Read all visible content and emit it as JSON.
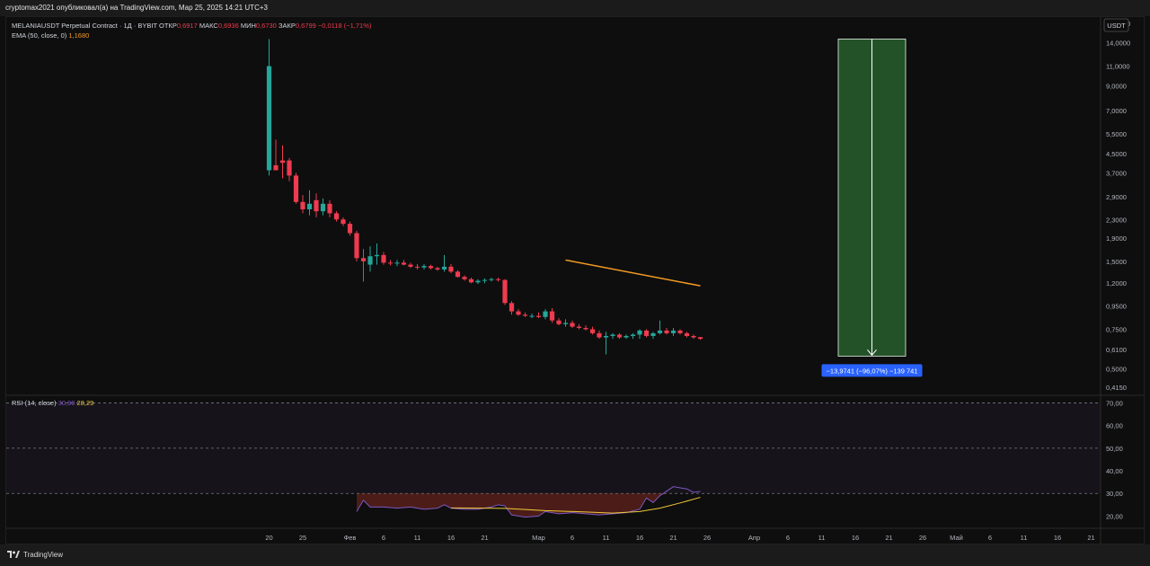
{
  "topbar": {
    "text": "cryptomax2021 опубликовал(а) на TradingView.com, Мар 25, 2025 14:21 UTC+3"
  },
  "footer": {
    "logo_text": "TradingView"
  },
  "legend": {
    "symbol": "MELANIAUSDT Perpetual Contract · 1Д · BYBIT",
    "open_label": "ОТКР",
    "open_value": "0,6917",
    "high_label": "МАКС",
    "high_value": "0,6936",
    "low_label": "МИН",
    "low_value": "0,6730",
    "close_label": "ЗАКР",
    "close_value": "0,6799",
    "change": "−0,0118 (−1,71%)",
    "ema_label": "EMA (50, close, 0)",
    "ema_value": "1,1680",
    "rsi_label": "RSI (14, close)",
    "rsi_value": "30,90",
    "rsi_ma_value": "28,29"
  },
  "colors": {
    "up": "#26a69a",
    "down": "#ef3b4f",
    "ema": "#f59a23",
    "rsi": "#7e57c2",
    "rsi_ma": "#f0c93a",
    "measure_fill": "#245228",
    "badge": "#2962ff"
  },
  "measure": {
    "label": "−13,9741 (−96,07%) −139 741",
    "from_price": 14.5,
    "to_price": 0.57
  },
  "chart_data": [
    {
      "type": "candlestick",
      "title": "MELANIAUSDT Perpetual Contract · 1Д · BYBIT",
      "currency": "USDT",
      "y_scale": "log",
      "ylim": [
        0.4,
        17.5
      ],
      "y_ticks": [
        0.415,
        0.5,
        0.61,
        0.75,
        0.95,
        1.2,
        1.5,
        1.9,
        2.3,
        2.9,
        3.7,
        4.5,
        5.5,
        7.0,
        9.0,
        11.0,
        14.0,
        17.0
      ],
      "y_tick_labels": [
        "0,4150",
        "0,5000",
        "0,6100",
        "0,7500",
        "0,9500",
        "1,2000",
        "1,5000",
        "1,9000",
        "2,3000",
        "2,9000",
        "3,7000",
        "4,5000",
        "5,5000",
        "7,0000",
        "9,0000",
        "11,0000",
        "14,0000",
        "17,0000"
      ],
      "x_tick_labels": [
        "20",
        "25",
        "Фев",
        "6",
        "11",
        "16",
        "21",
        "Мар",
        "6",
        "11",
        "16",
        "21",
        "26",
        "Апр",
        "6",
        "11",
        "16",
        "21",
        "26",
        "Май",
        "6",
        "11",
        "16",
        "21"
      ],
      "x_tick_days": [
        0,
        5,
        12,
        17,
        22,
        27,
        32,
        40,
        45,
        50,
        55,
        60,
        65,
        72,
        77,
        82,
        87,
        92,
        97,
        102,
        107,
        112,
        117,
        122
      ],
      "start_date": "2025-01-20",
      "candles": [
        {
          "d": "2025-01-20",
          "o": 3.8,
          "h": 14.5,
          "l": 3.6,
          "c": 11.0
        },
        {
          "d": "2025-01-21",
          "o": 4.0,
          "h": 5.2,
          "l": 3.8,
          "c": 3.8
        },
        {
          "d": "2025-01-22",
          "o": 4.2,
          "h": 4.9,
          "l": 3.5,
          "c": 4.1
        },
        {
          "d": "2025-01-23",
          "o": 4.2,
          "h": 4.3,
          "l": 3.4,
          "c": 3.6
        },
        {
          "d": "2025-01-24",
          "o": 3.6,
          "h": 3.7,
          "l": 2.7,
          "c": 2.75
        },
        {
          "d": "2025-01-25",
          "o": 2.75,
          "h": 2.95,
          "l": 2.45,
          "c": 2.55
        },
        {
          "d": "2025-01-26",
          "o": 2.55,
          "h": 3.1,
          "l": 2.4,
          "c": 2.7
        },
        {
          "d": "2025-01-27",
          "o": 2.8,
          "h": 3.0,
          "l": 2.35,
          "c": 2.5
        },
        {
          "d": "2025-01-28",
          "o": 2.5,
          "h": 2.85,
          "l": 2.4,
          "c": 2.7
        },
        {
          "d": "2025-01-29",
          "o": 2.7,
          "h": 2.8,
          "l": 2.35,
          "c": 2.45
        },
        {
          "d": "2025-01-30",
          "o": 2.45,
          "h": 2.5,
          "l": 2.25,
          "c": 2.3
        },
        {
          "d": "2025-01-31",
          "o": 2.3,
          "h": 2.35,
          "l": 2.15,
          "c": 2.2
        },
        {
          "d": "2025-02-01",
          "o": 2.2,
          "h": 2.25,
          "l": 1.95,
          "c": 2.0
        },
        {
          "d": "2025-02-02",
          "o": 2.0,
          "h": 2.05,
          "l": 1.5,
          "c": 1.55
        },
        {
          "d": "2025-02-03",
          "o": 1.55,
          "h": 1.7,
          "l": 1.22,
          "c": 1.5
        },
        {
          "d": "2025-02-04",
          "o": 1.45,
          "h": 1.75,
          "l": 1.35,
          "c": 1.58
        },
        {
          "d": "2025-02-05",
          "o": 1.58,
          "h": 1.8,
          "l": 1.45,
          "c": 1.6
        },
        {
          "d": "2025-02-06",
          "o": 1.6,
          "h": 1.65,
          "l": 1.45,
          "c": 1.48
        },
        {
          "d": "2025-02-07",
          "o": 1.48,
          "h": 1.52,
          "l": 1.44,
          "c": 1.47
        },
        {
          "d": "2025-02-08",
          "o": 1.47,
          "h": 1.52,
          "l": 1.43,
          "c": 1.48
        },
        {
          "d": "2025-02-09",
          "o": 1.48,
          "h": 1.52,
          "l": 1.44,
          "c": 1.45
        },
        {
          "d": "2025-02-10",
          "o": 1.45,
          "h": 1.48,
          "l": 1.4,
          "c": 1.42
        },
        {
          "d": "2025-02-11",
          "o": 1.42,
          "h": 1.46,
          "l": 1.38,
          "c": 1.41
        },
        {
          "d": "2025-02-12",
          "o": 1.41,
          "h": 1.46,
          "l": 1.38,
          "c": 1.43
        },
        {
          "d": "2025-02-13",
          "o": 1.43,
          "h": 1.45,
          "l": 1.38,
          "c": 1.4
        },
        {
          "d": "2025-02-14",
          "o": 1.4,
          "h": 1.42,
          "l": 1.36,
          "c": 1.38
        },
        {
          "d": "2025-02-15",
          "o": 1.38,
          "h": 1.6,
          "l": 1.35,
          "c": 1.42
        },
        {
          "d": "2025-02-16",
          "o": 1.42,
          "h": 1.46,
          "l": 1.33,
          "c": 1.35
        },
        {
          "d": "2025-02-17",
          "o": 1.35,
          "h": 1.37,
          "l": 1.27,
          "c": 1.28
        },
        {
          "d": "2025-02-18",
          "o": 1.28,
          "h": 1.3,
          "l": 1.23,
          "c": 1.25
        },
        {
          "d": "2025-02-19",
          "o": 1.25,
          "h": 1.27,
          "l": 1.2,
          "c": 1.21
        },
        {
          "d": "2025-02-20",
          "o": 1.21,
          "h": 1.25,
          "l": 1.19,
          "c": 1.23
        },
        {
          "d": "2025-02-21",
          "o": 1.23,
          "h": 1.26,
          "l": 1.2,
          "c": 1.24
        },
        {
          "d": "2025-02-22",
          "o": 1.24,
          "h": 1.27,
          "l": 1.22,
          "c": 1.25
        },
        {
          "d": "2025-02-23",
          "o": 1.25,
          "h": 1.27,
          "l": 1.22,
          "c": 1.24
        },
        {
          "d": "2025-02-24",
          "o": 1.24,
          "h": 1.25,
          "l": 0.96,
          "c": 0.98
        },
        {
          "d": "2025-02-25",
          "o": 0.98,
          "h": 1.0,
          "l": 0.87,
          "c": 0.9
        },
        {
          "d": "2025-02-26",
          "o": 0.9,
          "h": 0.92,
          "l": 0.86,
          "c": 0.87
        },
        {
          "d": "2025-02-27",
          "o": 0.87,
          "h": 0.89,
          "l": 0.85,
          "c": 0.86
        },
        {
          "d": "2025-02-28",
          "o": 0.86,
          "h": 0.88,
          "l": 0.84,
          "c": 0.86
        },
        {
          "d": "2025-03-01",
          "o": 0.86,
          "h": 0.89,
          "l": 0.84,
          "c": 0.85
        },
        {
          "d": "2025-03-02",
          "o": 0.85,
          "h": 0.92,
          "l": 0.83,
          "c": 0.9
        },
        {
          "d": "2025-03-03",
          "o": 0.9,
          "h": 0.93,
          "l": 0.8,
          "c": 0.82
        },
        {
          "d": "2025-03-04",
          "o": 0.82,
          "h": 0.84,
          "l": 0.78,
          "c": 0.79
        },
        {
          "d": "2025-03-05",
          "o": 0.79,
          "h": 0.83,
          "l": 0.77,
          "c": 0.8
        },
        {
          "d": "2025-03-06",
          "o": 0.8,
          "h": 0.82,
          "l": 0.76,
          "c": 0.77
        },
        {
          "d": "2025-03-07",
          "o": 0.77,
          "h": 0.79,
          "l": 0.75,
          "c": 0.76
        },
        {
          "d": "2025-03-08",
          "o": 0.76,
          "h": 0.78,
          "l": 0.74,
          "c": 0.75
        },
        {
          "d": "2025-03-09",
          "o": 0.75,
          "h": 0.77,
          "l": 0.71,
          "c": 0.72
        },
        {
          "d": "2025-03-10",
          "o": 0.72,
          "h": 0.74,
          "l": 0.68,
          "c": 0.69
        },
        {
          "d": "2025-03-11",
          "o": 0.69,
          "h": 0.73,
          "l": 0.58,
          "c": 0.7
        },
        {
          "d": "2025-03-12",
          "o": 0.7,
          "h": 0.72,
          "l": 0.68,
          "c": 0.71
        },
        {
          "d": "2025-03-13",
          "o": 0.71,
          "h": 0.72,
          "l": 0.68,
          "c": 0.69
        },
        {
          "d": "2025-03-14",
          "o": 0.69,
          "h": 0.71,
          "l": 0.68,
          "c": 0.7
        },
        {
          "d": "2025-03-15",
          "o": 0.7,
          "h": 0.72,
          "l": 0.68,
          "c": 0.71
        },
        {
          "d": "2025-03-16",
          "o": 0.71,
          "h": 0.75,
          "l": 0.68,
          "c": 0.74
        },
        {
          "d": "2025-03-17",
          "o": 0.74,
          "h": 0.75,
          "l": 0.69,
          "c": 0.7
        },
        {
          "d": "2025-03-18",
          "o": 0.7,
          "h": 0.73,
          "l": 0.68,
          "c": 0.72
        },
        {
          "d": "2025-03-19",
          "o": 0.72,
          "h": 0.82,
          "l": 0.71,
          "c": 0.74
        },
        {
          "d": "2025-03-20",
          "o": 0.74,
          "h": 0.76,
          "l": 0.71,
          "c": 0.72
        },
        {
          "d": "2025-03-21",
          "o": 0.72,
          "h": 0.76,
          "l": 0.7,
          "c": 0.74
        },
        {
          "d": "2025-03-22",
          "o": 0.74,
          "h": 0.75,
          "l": 0.71,
          "c": 0.72
        },
        {
          "d": "2025-03-23",
          "o": 0.72,
          "h": 0.73,
          "l": 0.69,
          "c": 0.7
        },
        {
          "d": "2025-03-24",
          "o": 0.7,
          "h": 0.71,
          "l": 0.68,
          "c": 0.69
        },
        {
          "d": "2025-03-25",
          "o": 0.6917,
          "h": 0.6936,
          "l": 0.673,
          "c": 0.6799
        }
      ],
      "ema": [
        {
          "d": "2025-03-05",
          "v": 1.52
        },
        {
          "d": "2025-03-25",
          "v": 1.168
        }
      ]
    },
    {
      "type": "line",
      "title": "RSI (14, close)",
      "ylim": [
        15,
        73
      ],
      "y_ticks": [
        20,
        30,
        40,
        50,
        60,
        70
      ],
      "y_tick_labels": [
        "20,00",
        "30,00",
        "40,00",
        "50,00",
        "60,00",
        "70,00"
      ],
      "bands": [
        30,
        50,
        70
      ],
      "series": [
        {
          "name": "RSI",
          "values": [
            {
              "d": "2025-02-02",
              "v": 22
            },
            {
              "d": "2025-02-03",
              "v": 27
            },
            {
              "d": "2025-02-04",
              "v": 24
            },
            {
              "d": "2025-02-06",
              "v": 24
            },
            {
              "d": "2025-02-08",
              "v": 23.5
            },
            {
              "d": "2025-02-10",
              "v": 24
            },
            {
              "d": "2025-02-12",
              "v": 23
            },
            {
              "d": "2025-02-14",
              "v": 23.5
            },
            {
              "d": "2025-02-15",
              "v": 25
            },
            {
              "d": "2025-02-16",
              "v": 23.5
            },
            {
              "d": "2025-02-18",
              "v": 23
            },
            {
              "d": "2025-02-20",
              "v": 23
            },
            {
              "d": "2025-02-22",
              "v": 24
            },
            {
              "d": "2025-02-23",
              "v": 25
            },
            {
              "d": "2025-02-24",
              "v": 24.5
            },
            {
              "d": "2025-02-25",
              "v": 20.5
            },
            {
              "d": "2025-02-27",
              "v": 19.5
            },
            {
              "d": "2025-03-01",
              "v": 20
            },
            {
              "d": "2025-03-02",
              "v": 22
            },
            {
              "d": "2025-03-04",
              "v": 21
            },
            {
              "d": "2025-03-06",
              "v": 21.5
            },
            {
              "d": "2025-03-08",
              "v": 21
            },
            {
              "d": "2025-03-10",
              "v": 20.5
            },
            {
              "d": "2025-03-12",
              "v": 21
            },
            {
              "d": "2025-03-14",
              "v": 21.5
            },
            {
              "d": "2025-03-16",
              "v": 23
            },
            {
              "d": "2025-03-17",
              "v": 28
            },
            {
              "d": "2025-03-18",
              "v": 26
            },
            {
              "d": "2025-03-19",
              "v": 29
            },
            {
              "d": "2025-03-20",
              "v": 31
            },
            {
              "d": "2025-03-21",
              "v": 33
            },
            {
              "d": "2025-03-22",
              "v": 32.5
            },
            {
              "d": "2025-03-23",
              "v": 32
            },
            {
              "d": "2025-03-24",
              "v": 30.5
            },
            {
              "d": "2025-03-25",
              "v": 30.9
            }
          ]
        },
        {
          "name": "RSI MA",
          "values": [
            {
              "d": "2025-02-16",
              "v": 23.6
            },
            {
              "d": "2025-02-24",
              "v": 23.4
            },
            {
              "d": "2025-03-02",
              "v": 22.4
            },
            {
              "d": "2025-03-08",
              "v": 21.8
            },
            {
              "d": "2025-03-12",
              "v": 21.3
            },
            {
              "d": "2025-03-16",
              "v": 22
            },
            {
              "d": "2025-03-19",
              "v": 23.5
            },
            {
              "d": "2025-03-22",
              "v": 25.8
            },
            {
              "d": "2025-03-25",
              "v": 28.29
            }
          ]
        }
      ]
    }
  ]
}
